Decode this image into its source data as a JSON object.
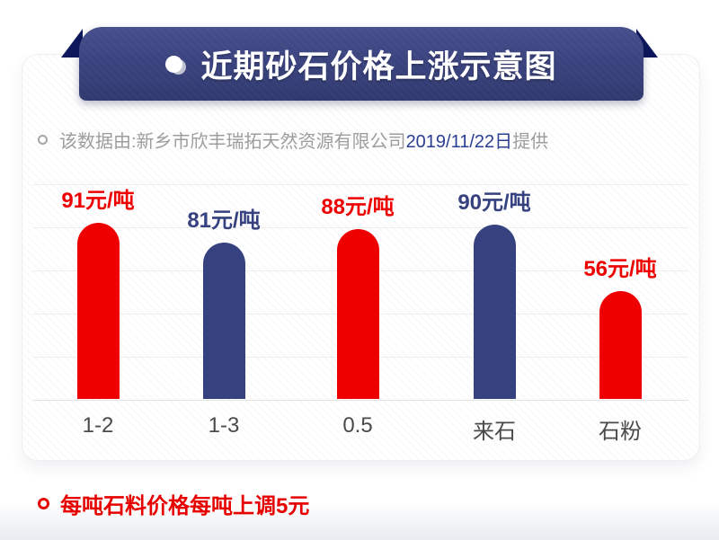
{
  "header": {
    "title": "近期砂石价格上涨示意图",
    "banner_color": "#3c4480",
    "fold_color": "#0d175c"
  },
  "source_note": {
    "prefix": "该数据由:新乡市欣丰瑞拓天然资源有限公司",
    "date": "2019/11/22日",
    "suffix": "提供"
  },
  "chart_data": {
    "type": "bar",
    "title": "近期砂石价格上涨示意图",
    "categories": [
      "1-2",
      "1-3",
      "0.5",
      "来石",
      "石粉"
    ],
    "values": [
      91,
      81,
      88,
      90,
      56
    ],
    "unit": "元/吨",
    "bar_colors": [
      "#ee0000",
      "#36417f",
      "#ee0000",
      "#36417f",
      "#ee0000"
    ],
    "label_colors": [
      "#ee0000",
      "#36417f",
      "#ee0000",
      "#36417f",
      "#ee0000"
    ],
    "xlabel": "",
    "ylabel": "",
    "ylim": [
      0,
      100
    ],
    "grid": true,
    "legend": false
  },
  "footer_note": {
    "text": "每吨石料价格每吨上调5元",
    "color": "#e60000"
  },
  "colors": {
    "red": "#ee0000",
    "navy": "#36417f",
    "gray_text": "#9d9d9d",
    "category_text": "#4a4a4a"
  }
}
